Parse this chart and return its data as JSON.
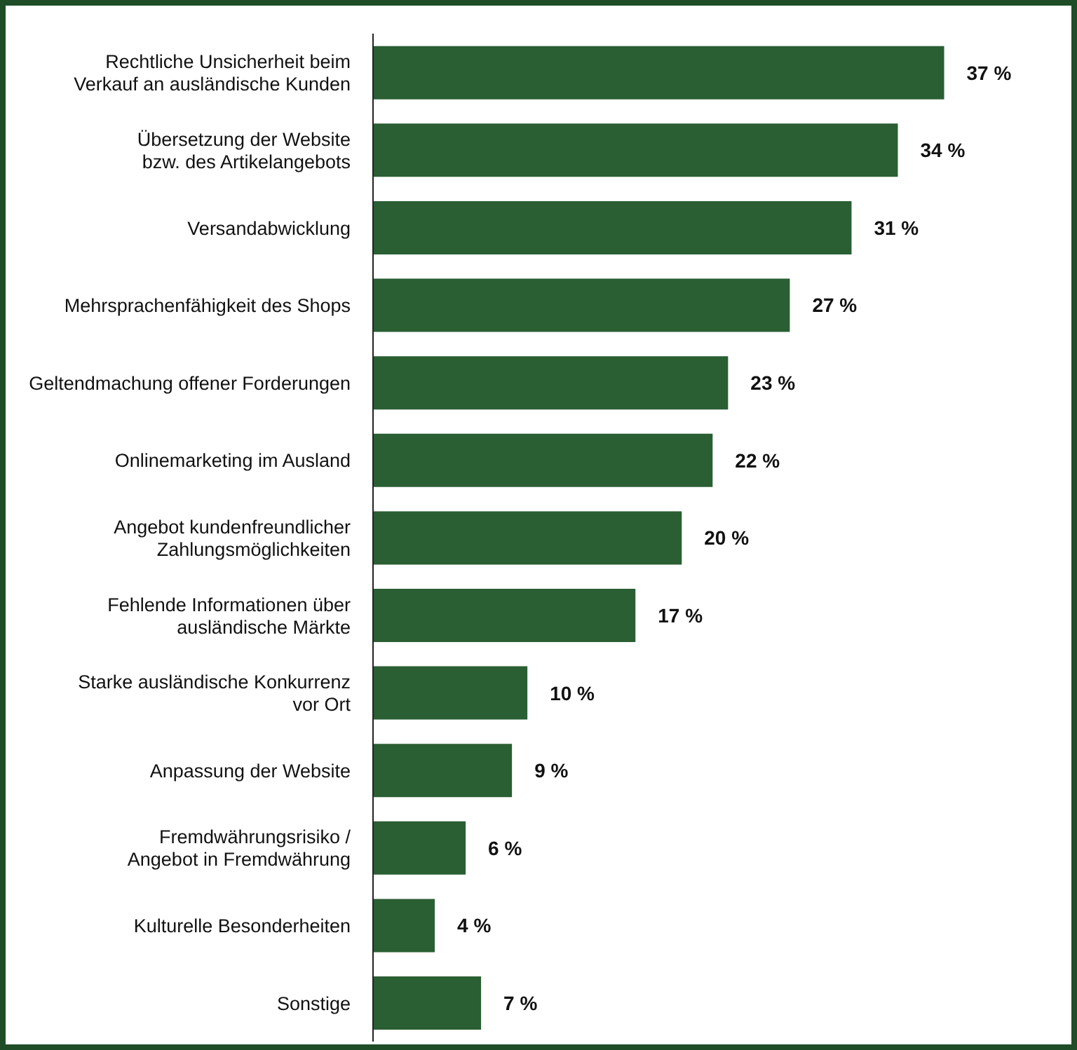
{
  "chart_data": {
    "type": "bar",
    "orientation": "horizontal",
    "categories": [
      "Rechtliche Unsicherheit beim\nVerkauf an ausländische Kunden",
      "Übersetzung der Website\nbzw. des Artikelangebots",
      "Versandabwicklung",
      "Mehrsprachenfähigkeit des Shops",
      "Geltendmachung offener Forderungen",
      "Onlinemarketing im Ausland",
      "Angebot kundenfreundlicher\nZahlungsmöglichkeiten",
      "Fehlende Informationen über\nausländische Märkte",
      "Starke ausländische Konkurrenz\nvor Ort",
      "Anpassung der Website",
      "Fremdwährungsrisiko /\nAngebot in Fremdwährung",
      "Kulturelle Besonderheiten",
      "Sonstige"
    ],
    "values": [
      37,
      34,
      31,
      27,
      23,
      22,
      20,
      17,
      10,
      9,
      6,
      4,
      7
    ],
    "value_labels": [
      "37 %",
      "34 %",
      "31 %",
      "27 %",
      "23 %",
      "22 %",
      "20 %",
      "17 %",
      "10 %",
      "9 %",
      "6 %",
      "4 %",
      "7 %"
    ],
    "color": "#2a5e33",
    "grid": false,
    "legend": false
  }
}
